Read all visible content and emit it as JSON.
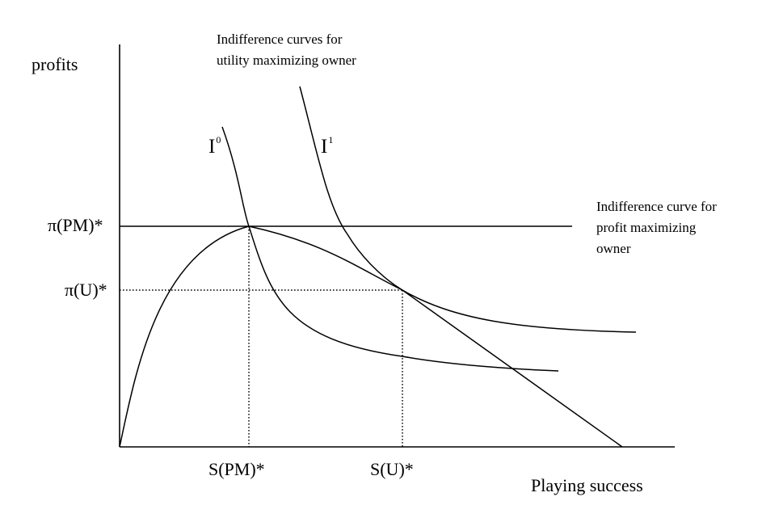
{
  "diagram": {
    "y_axis_label": "profits",
    "x_axis_label": "Playing success",
    "y_ticks": {
      "profit_max": "π(PM)*",
      "utility_max": "π(U)*"
    },
    "x_ticks": {
      "profit_max": "S(PM)*",
      "utility_max": "S(U)*"
    },
    "curves": {
      "i0": {
        "base": "I",
        "superscript": "0"
      },
      "i1": {
        "base": "I",
        "superscript": "1"
      }
    },
    "annotations": {
      "utility_owner": [
        "Indifference curves for",
        "utility maximizing owner"
      ],
      "profit_owner": [
        "Indifference curve for",
        "profit maximizing",
        "owner"
      ]
    },
    "colors": {
      "ink": "#000000",
      "background": "#ffffff"
    }
  }
}
